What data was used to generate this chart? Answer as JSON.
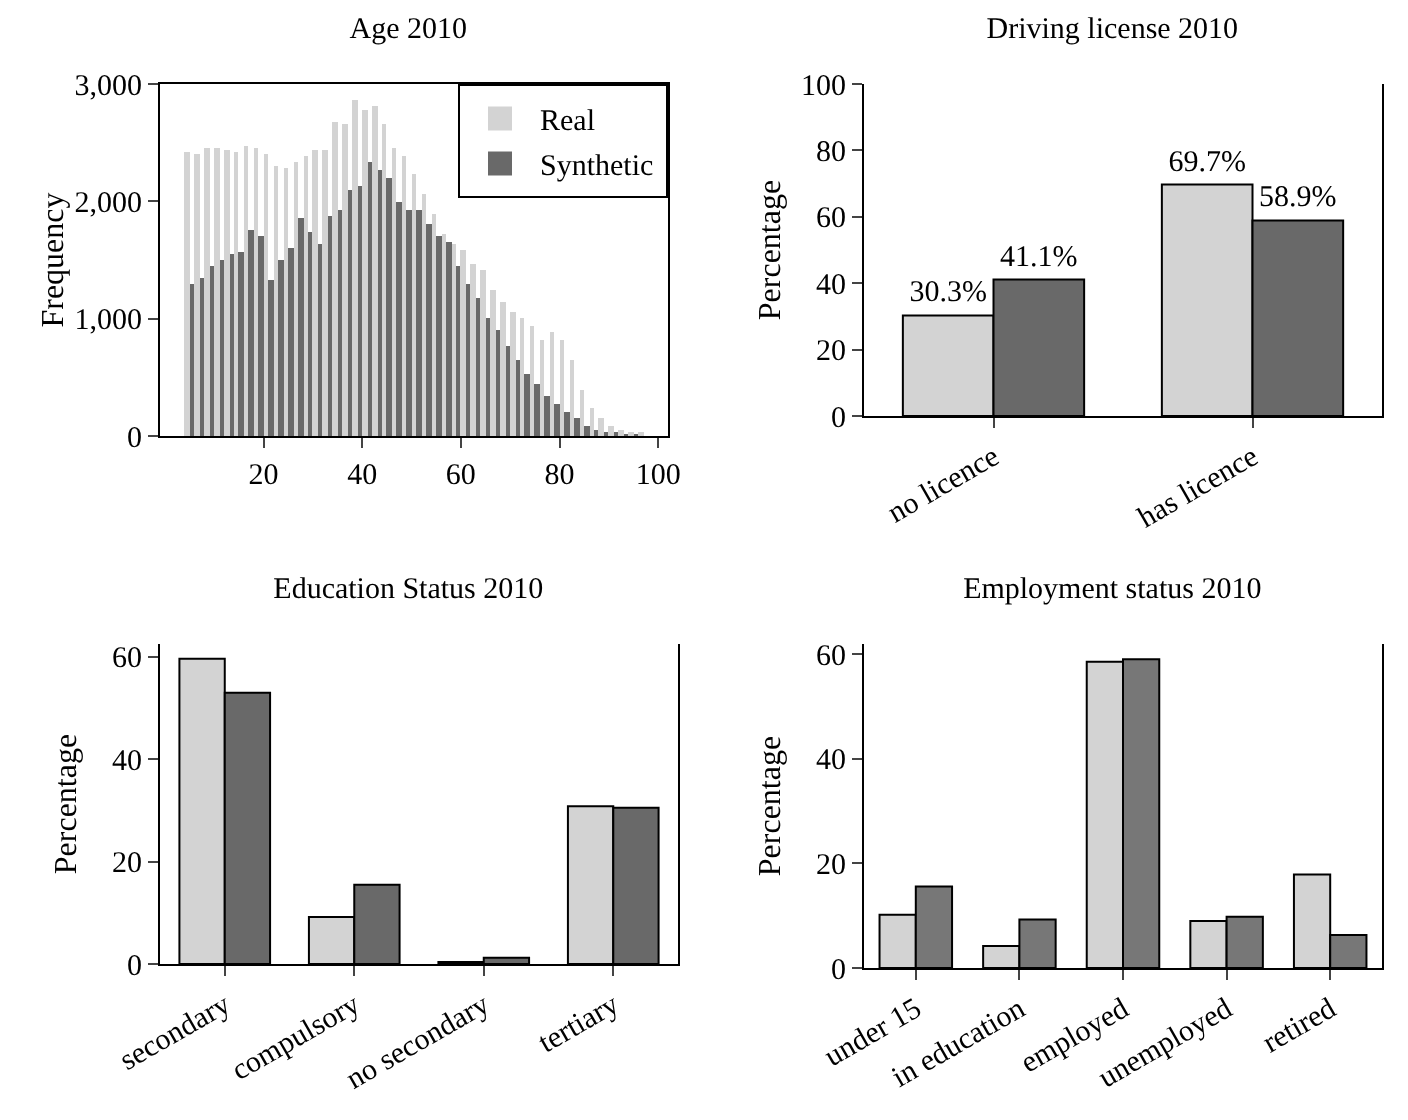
{
  "chart_data": [
    {
      "type": "histogram",
      "title": "Age 2010",
      "ylabel": "Frequency",
      "bins": [
        4,
        6,
        8,
        10,
        12,
        14,
        16,
        18,
        20,
        22,
        24,
        26,
        28,
        30,
        32,
        34,
        36,
        38,
        40,
        42,
        44,
        46,
        48,
        50,
        52,
        54,
        56,
        58,
        60,
        62,
        64,
        66,
        68,
        70,
        72,
        74,
        76,
        78,
        80,
        82,
        84,
        86,
        88,
        90,
        92,
        94,
        96,
        98,
        100
      ],
      "xlim": [
        -1,
        102
      ],
      "xticks": [
        20,
        40,
        60,
        80,
        100
      ],
      "ylim": [
        0,
        3000
      ],
      "yticks": [
        0,
        {
          "value": 1000,
          "label": "1,000"
        },
        {
          "value": 2000,
          "label": "2,000"
        },
        {
          "value": 3000,
          "label": "3,000"
        }
      ],
      "legend": "top right",
      "grid": false,
      "series": [
        {
          "name": "Real",
          "color": "#d3d3d3",
          "values": [
            2420,
            2400,
            2460,
            2450,
            2440,
            2420,
            2480,
            2460,
            2400,
            2300,
            2280,
            2330,
            2380,
            2430,
            2440,
            2680,
            2660,
            2860,
            2770,
            2810,
            2660,
            2460,
            2380,
            2240,
            2060,
            1900,
            1730,
            1640,
            1580,
            1470,
            1410,
            1240,
            1150,
            1050,
            1000,
            940,
            820,
            890,
            810,
            640,
            390,
            240,
            150,
            90,
            50,
            30,
            20,
            null
          ]
        },
        {
          "name": "Synthetic",
          "color": "#696969",
          "values": [
            1290,
            1350,
            1450,
            1500,
            1550,
            1570,
            1760,
            1700,
            1330,
            1500,
            1600,
            1850,
            1740,
            1640,
            1870,
            1920,
            2090,
            2130,
            2330,
            2260,
            2200,
            2000,
            1920,
            1920,
            1810,
            1700,
            1650,
            1450,
            1300,
            1170,
            1010,
            900,
            760,
            650,
            530,
            440,
            340,
            270,
            210,
            150,
            90,
            50,
            30,
            20,
            10,
            10,
            0,
            0
          ]
        }
      ]
    },
    {
      "type": "bar",
      "title": "Driving license 2010",
      "ylabel": "Percentage",
      "categories": [
        "no licence",
        "has licence"
      ],
      "ylim": [
        0,
        100
      ],
      "yticks": [
        0,
        20,
        40,
        60,
        80,
        100
      ],
      "legend": false,
      "grid": false,
      "series": [
        {
          "color": "#d3d3d3",
          "values": [
            30.3,
            69.7
          ],
          "value_labels": [
            "30.3%",
            "69.7%"
          ]
        },
        {
          "color": "#696969",
          "values": [
            41.1,
            58.9
          ],
          "value_labels": [
            "41.1%",
            "58.9%"
          ]
        }
      ]
    },
    {
      "type": "bar",
      "title": "Education Status 2010",
      "ylabel": "Percentage",
      "categories": [
        "secondary",
        "compulsory",
        "no secondary",
        "tertiary"
      ],
      "ylim": [
        0,
        62.5
      ],
      "yticks": [
        0,
        20,
        40,
        60
      ],
      "legend": false,
      "grid": false,
      "series": [
        {
          "color": "#d3d3d3",
          "values": [
            59.6,
            9.2,
            0.4,
            30.8
          ]
        },
        {
          "color": "#696969",
          "values": [
            53.0,
            15.5,
            1.2,
            30.5
          ]
        }
      ]
    },
    {
      "type": "bar",
      "title": "Employment status 2010",
      "ylabel": "Percentage",
      "categories": [
        "under 15",
        "in education",
        "employed",
        "unemployed",
        "retired"
      ],
      "ylim": [
        0,
        62
      ],
      "yticks": [
        0,
        20,
        40,
        60
      ],
      "legend": false,
      "grid": false,
      "series": [
        {
          "color": "#d3d3d3",
          "values": [
            10.2,
            4.2,
            58.6,
            9.0,
            17.9
          ]
        },
        {
          "color": "#777777",
          "values": [
            15.6,
            9.3,
            59.1,
            9.8,
            6.3
          ]
        }
      ]
    }
  ]
}
